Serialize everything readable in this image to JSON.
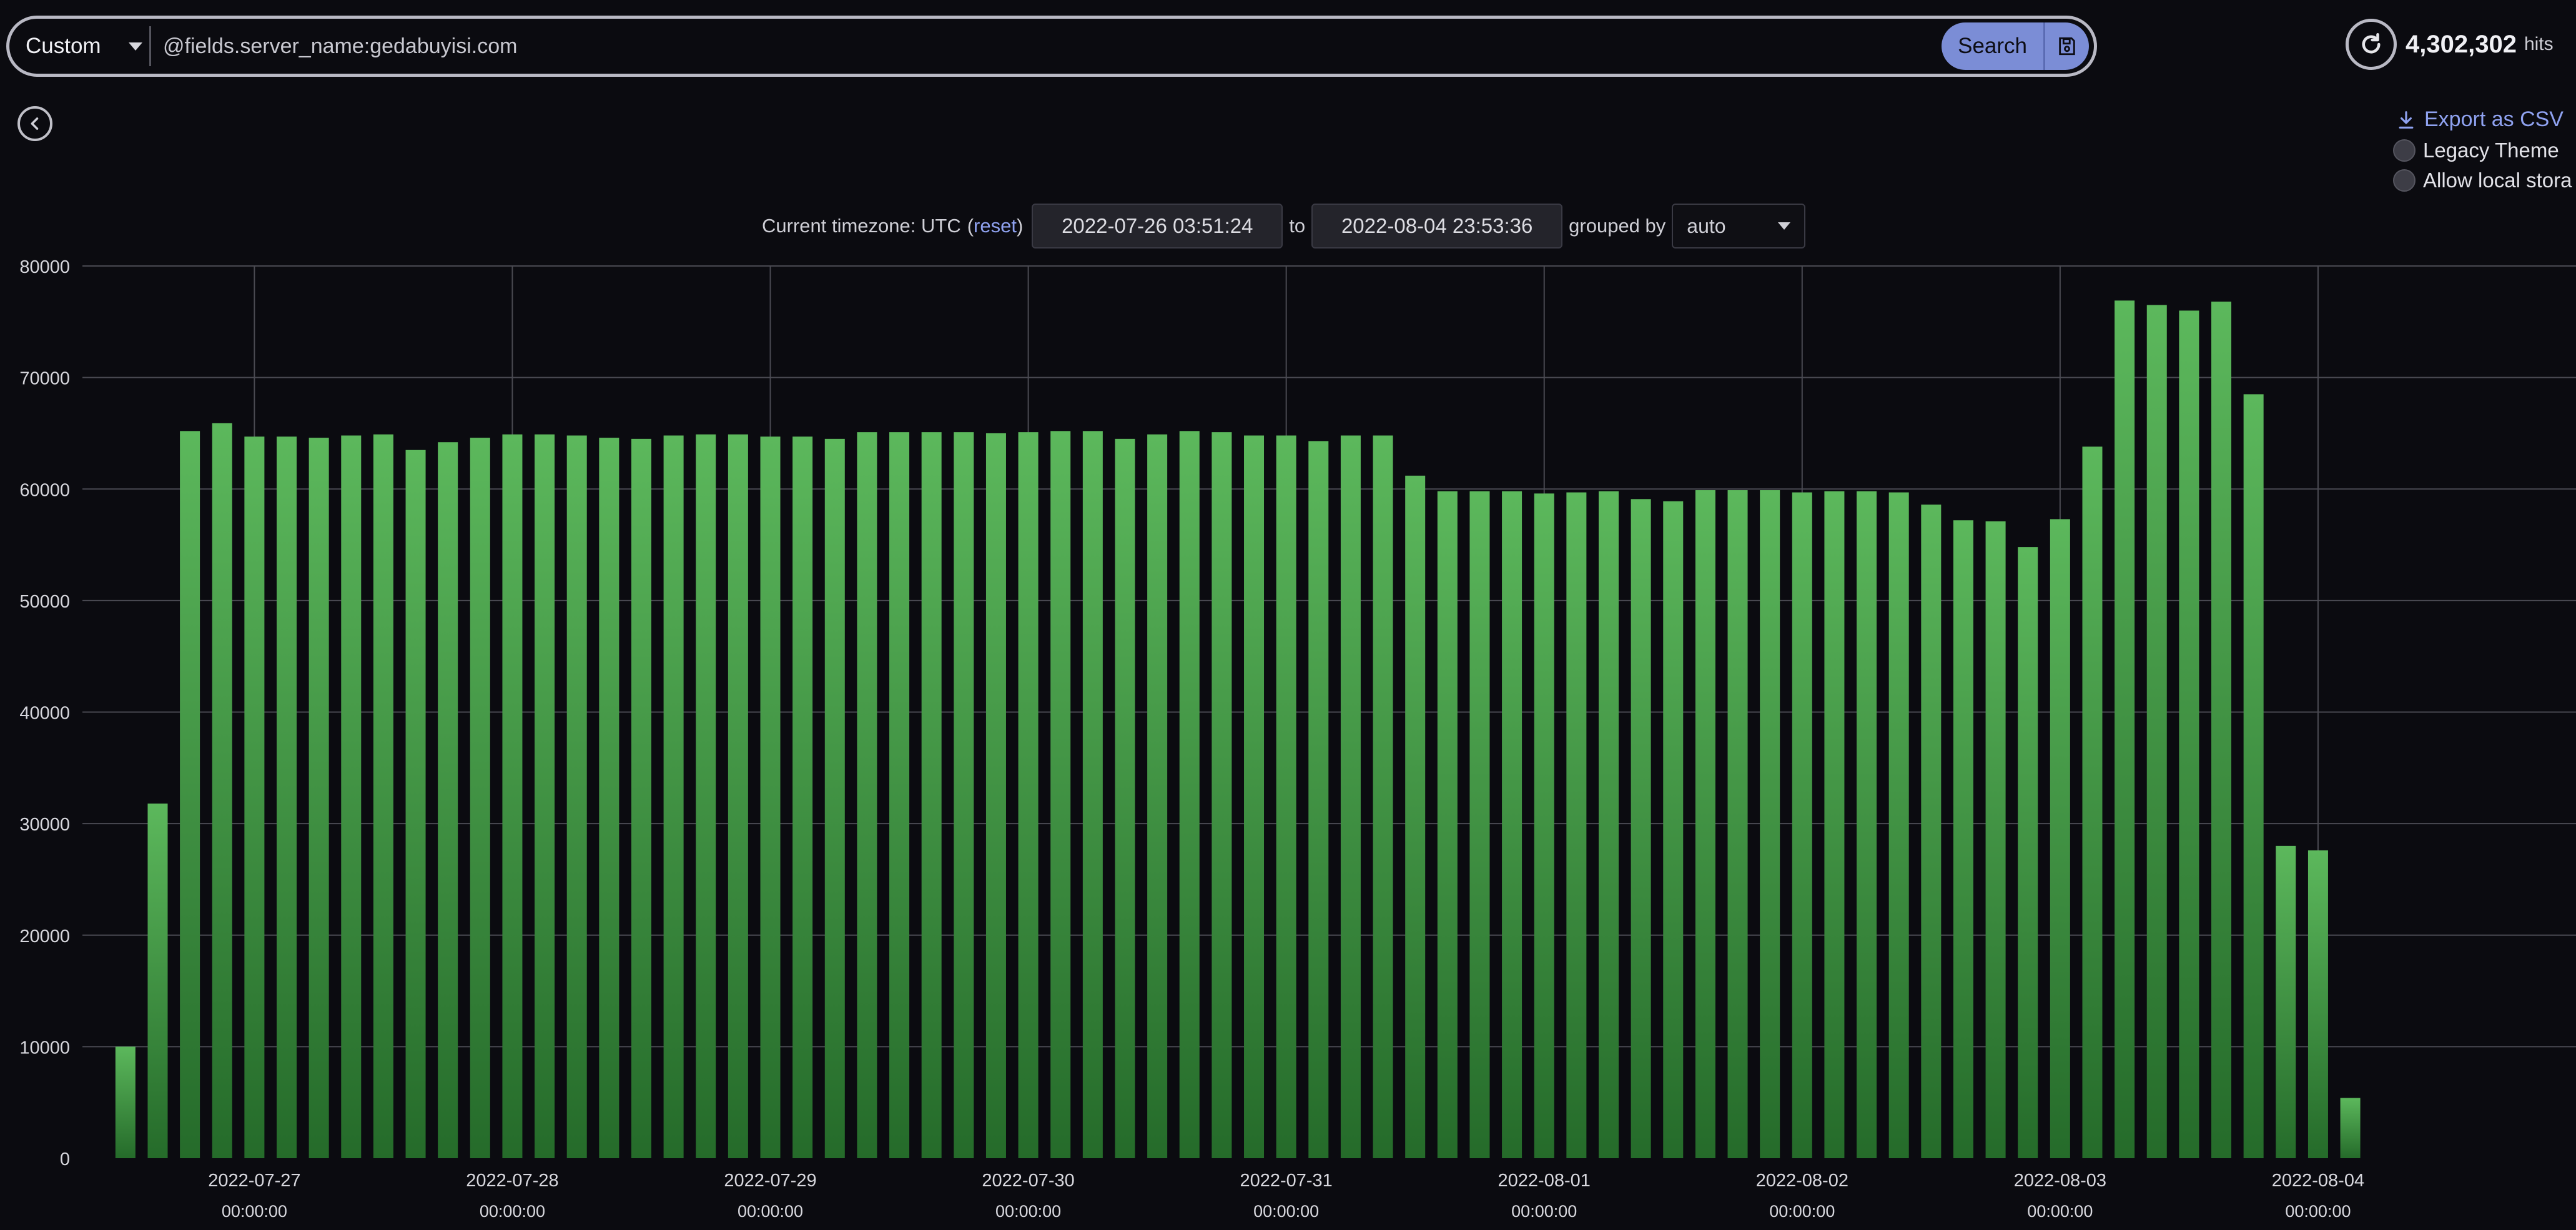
{
  "search": {
    "mode": "Custom",
    "query": "@fields.server_name:gedabuyisi.com",
    "button_label": "Search"
  },
  "hits": {
    "count": "4,302,302",
    "label": "hits"
  },
  "options": {
    "export_label": "Export as CSV",
    "legacy_theme_label": "Legacy Theme",
    "allow_local_storage_label": "Allow local stora"
  },
  "timezone": {
    "label": "Current timezone: UTC",
    "open_paren": "(",
    "reset_label": "reset",
    "close_paren": ")",
    "from": "2022-07-26 03:51:24",
    "to_label": "to",
    "to": "2022-08-04 23:53:36",
    "grouped_by_label": "grouped by",
    "grouped_by_value": "auto"
  },
  "colors": {
    "bar_top": "#5cb85c",
    "bar_bottom": "#256b2a",
    "grid": "#4a4a52",
    "accent": "#7b8dd6"
  },
  "chart_data": {
    "type": "bar",
    "bucket_hours": 3,
    "x_start": "2022-07-26 12:00:00",
    "x_range": [
      "2022-07-26 08:00:00",
      "2022-08-05 00:00:00"
    ],
    "ylim": [
      0,
      80000
    ],
    "y_ticks": [
      0,
      10000,
      20000,
      30000,
      40000,
      50000,
      60000,
      70000,
      80000
    ],
    "x_ticks": [
      {
        "date": "2022-07-27",
        "time": "00:00:00"
      },
      {
        "date": "2022-07-28",
        "time": "00:00:00"
      },
      {
        "date": "2022-07-29",
        "time": "00:00:00"
      },
      {
        "date": "2022-07-30",
        "time": "00:00:00"
      },
      {
        "date": "2022-07-31",
        "time": "00:00:00"
      },
      {
        "date": "2022-08-01",
        "time": "00:00:00"
      },
      {
        "date": "2022-08-02",
        "time": "00:00:00"
      },
      {
        "date": "2022-08-03",
        "time": "00:00:00"
      },
      {
        "date": "2022-08-04",
        "time": "00:00:00"
      }
    ],
    "values": [
      10000,
      31800,
      65200,
      65900,
      64700,
      64700,
      64600,
      64800,
      64900,
      63500,
      64200,
      64600,
      64900,
      64900,
      64800,
      64600,
      64500,
      64800,
      64900,
      64900,
      64700,
      64700,
      64500,
      65100,
      65100,
      65100,
      65100,
      65000,
      65100,
      65200,
      65200,
      64500,
      64900,
      65200,
      65100,
      64800,
      64800,
      64300,
      64800,
      64800,
      61200,
      59800,
      59800,
      59800,
      59600,
      59700,
      59800,
      59100,
      58900,
      59900,
      59900,
      59900,
      59700,
      59800,
      59800,
      59700,
      58600,
      57200,
      57100,
      54800,
      57300,
      63800,
      76900,
      76500,
      76000,
      76800,
      68500,
      28000,
      27600,
      5400
    ],
    "grid": true,
    "legend": "none"
  }
}
